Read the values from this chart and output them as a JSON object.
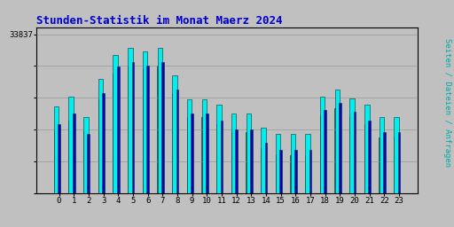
{
  "title": "Stunden-Statistik im Monat Maerz 2024",
  "ylabel": "Seiten / Dateien / Anfragen",
  "background_color": "#c0c0c0",
  "title_color": "#0000cc",
  "ylabel_color": "#00aaaa",
  "bar_color_cyan": "#00eeee",
  "bar_color_blue": "#0000bb",
  "bar_color_green": "#008866",
  "bar_edgecolor": "#003333",
  "hours": [
    0,
    1,
    2,
    3,
    4,
    5,
    6,
    7,
    8,
    9,
    10,
    11,
    12,
    13,
    14,
    15,
    16,
    17,
    18,
    19,
    20,
    21,
    22,
    23
  ],
  "values_cyan": [
    33750,
    33780,
    33720,
    33830,
    33900,
    33920,
    33910,
    33920,
    33840,
    33770,
    33770,
    33755,
    33730,
    33730,
    33690,
    33670,
    33670,
    33670,
    33780,
    33800,
    33775,
    33755,
    33720,
    33720
  ],
  "values_blue": [
    33700,
    33730,
    33670,
    33790,
    33865,
    33880,
    33870,
    33880,
    33800,
    33730,
    33730,
    33710,
    33685,
    33685,
    33645,
    33625,
    33625,
    33625,
    33740,
    33760,
    33735,
    33710,
    33675,
    33675
  ],
  "values_green": [
    33680,
    33710,
    33680,
    33770,
    33845,
    33865,
    33860,
    33870,
    33790,
    33720,
    33720,
    33700,
    33675,
    33675,
    33630,
    33610,
    33610,
    33610,
    33725,
    33745,
    33720,
    33700,
    33660,
    33660
  ],
  "ymin": 33500,
  "ymax": 33960,
  "ytick_val": 33837,
  "figsize": [
    5.12,
    2.56
  ],
  "dpi": 100
}
